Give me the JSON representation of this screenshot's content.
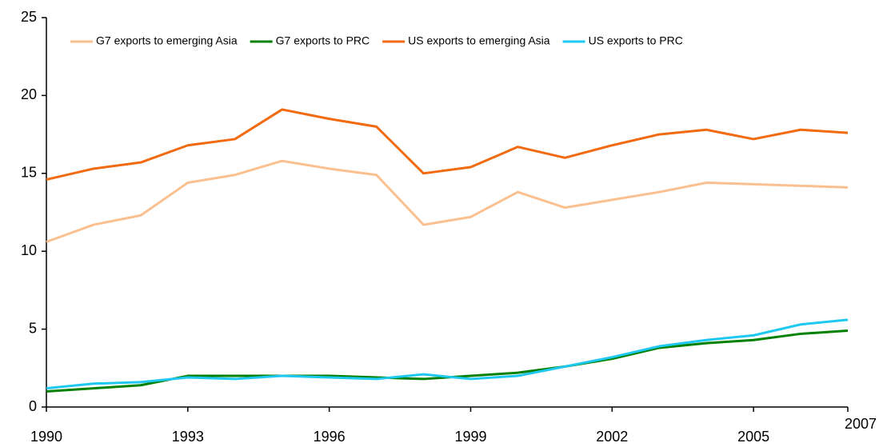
{
  "chart_data": {
    "type": "line",
    "x": [
      1990,
      1991,
      1992,
      1993,
      1994,
      1995,
      1996,
      1997,
      1998,
      1999,
      2000,
      2001,
      2002,
      2003,
      2004,
      2005,
      2006,
      2007
    ],
    "series": [
      {
        "name": "G7 exports to emerging Asia",
        "color": "#fac090",
        "values": [
          10.6,
          11.7,
          12.3,
          14.4,
          14.9,
          15.8,
          15.3,
          14.9,
          11.7,
          12.2,
          13.8,
          12.8,
          13.3,
          13.8,
          14.4,
          14.3,
          14.2,
          14.1
        ]
      },
      {
        "name": "G7 exports to PRC",
        "color": "#008000",
        "values": [
          1.0,
          1.2,
          1.4,
          2.0,
          2.0,
          2.0,
          2.0,
          1.9,
          1.8,
          2.0,
          2.2,
          2.6,
          3.1,
          3.8,
          4.1,
          4.3,
          4.7,
          4.9
        ]
      },
      {
        "name": "US exports to emerging Asia",
        "color": "#f26a10",
        "values": [
          14.6,
          15.3,
          15.7,
          16.8,
          17.2,
          19.1,
          18.5,
          18.0,
          15.0,
          15.4,
          16.7,
          16.0,
          16.8,
          17.5,
          17.8,
          17.2,
          17.8,
          17.6
        ]
      },
      {
        "name": "US exports to PRC",
        "color": "#1ec8f0",
        "values": [
          1.2,
          1.5,
          1.6,
          1.9,
          1.8,
          2.0,
          1.9,
          1.8,
          2.1,
          1.8,
          2.0,
          2.6,
          3.2,
          3.9,
          4.3,
          4.6,
          5.3,
          5.6
        ]
      }
    ],
    "xlim": [
      1990,
      2007
    ],
    "xticks": [
      1990,
      1993,
      1996,
      1999,
      2002,
      2005,
      2007
    ],
    "ylim": [
      0,
      25
    ],
    "yticks": [
      0,
      5,
      10,
      15,
      20,
      25
    ],
    "legend": "top"
  }
}
